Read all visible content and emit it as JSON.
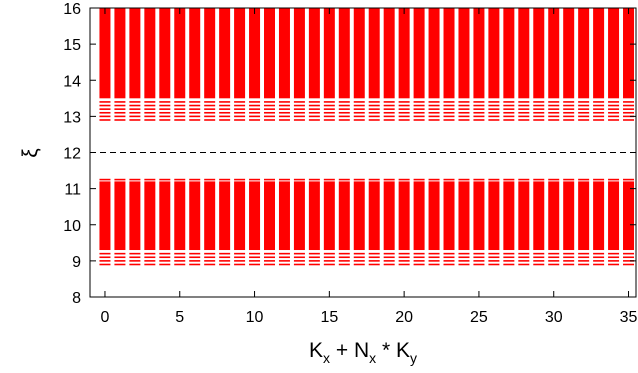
{
  "chart_data": {
    "type": "scatter",
    "title": "",
    "xlabel": {
      "base1": "K",
      "sub1": "x",
      "mid": " + N",
      "sub2": "x",
      "mid2": " * K",
      "sub3": "y"
    },
    "ylabel": "ξ",
    "xlim": [
      -1,
      35.5
    ],
    "ylim": [
      8,
      16
    ],
    "xticks": [
      0,
      5,
      10,
      15,
      20,
      25,
      30,
      35
    ],
    "yticks": [
      8,
      9,
      10,
      11,
      12,
      13,
      14,
      15,
      16
    ],
    "grid": false,
    "reference_line": {
      "y": 12,
      "style": "dashed",
      "color": "#000000"
    },
    "series": [
      {
        "color": "#ff0000",
        "marker": "horizontal-dash",
        "x": [
          0,
          1,
          2,
          3,
          4,
          5,
          6,
          7,
          8,
          9,
          10,
          11,
          12,
          13,
          14,
          15,
          16,
          17,
          18,
          19,
          20,
          21,
          22,
          23,
          24,
          25,
          26,
          27,
          28,
          29,
          30,
          31,
          32,
          33,
          34,
          35
        ],
        "bands": [
          {
            "dense_range": [
              9.3,
              11.2
            ],
            "sparse_levels": [
              8.9,
              9.0,
              9.1,
              9.2,
              11.25
            ]
          },
          {
            "dense_range": [
              13.5,
              16.0
            ],
            "sparse_levels": [
              12.9,
              13.0,
              13.1,
              13.2,
              13.3,
              13.4
            ]
          }
        ]
      }
    ]
  }
}
